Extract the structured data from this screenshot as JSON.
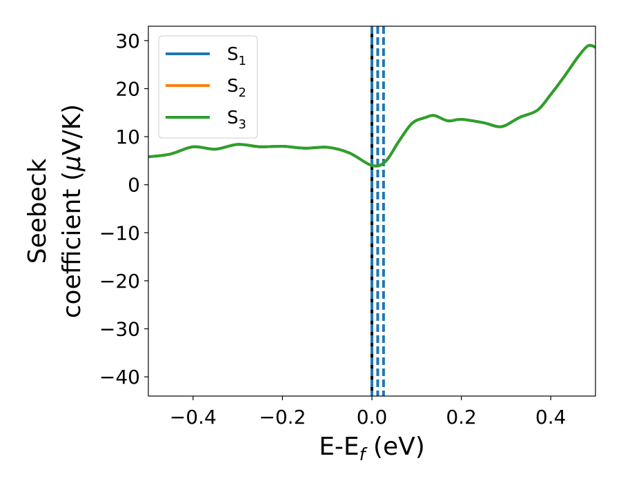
{
  "chart_data": {
    "type": "line",
    "xlabel": {
      "prefix": "E-E",
      "sub": "f",
      "suffix": " (eV)"
    },
    "ylabel": {
      "line1": "Seebeck",
      "line2_prefix": "coefficient  (",
      "mu": "μ",
      "line2_suffix": "V/K)"
    },
    "xlim": [
      -0.5,
      0.5
    ],
    "ylim": [
      -44,
      33
    ],
    "xticks": [
      -0.4,
      -0.2,
      0.0,
      0.2,
      0.4
    ],
    "xtick_labels": [
      "−0.4",
      "−0.2",
      "0.0",
      "0.2",
      "0.4"
    ],
    "yticks": [
      -40,
      -30,
      -20,
      -10,
      0,
      10,
      20,
      30
    ],
    "ytick_labels": [
      "−40",
      "−30",
      "−20",
      "−10",
      "0",
      "10",
      "20",
      "30"
    ],
    "legend_position": "top-left",
    "series": [
      {
        "name": "S1",
        "label_base": "S",
        "label_sub": "1",
        "color": "#1f77b4",
        "x": [
          -0.5,
          -0.45,
          -0.4,
          -0.35,
          -0.3,
          -0.25,
          -0.2,
          -0.15,
          -0.1,
          -0.05,
          0.0,
          0.03,
          0.06,
          0.09,
          0.12,
          0.14,
          0.17,
          0.2,
          0.25,
          0.29,
          0.33,
          0.37,
          0.4,
          0.43,
          0.46,
          0.48,
          0.49,
          0.5
        ],
        "y": [
          5.8,
          6.4,
          7.9,
          7.4,
          8.4,
          7.9,
          8.0,
          7.6,
          7.8,
          6.6,
          4.0,
          4.8,
          9.0,
          12.8,
          14.0,
          14.4,
          13.3,
          13.6,
          12.9,
          12.1,
          14.0,
          15.5,
          18.8,
          22.5,
          26.5,
          28.7,
          29.0,
          28.6
        ]
      },
      {
        "name": "S2",
        "label_base": "S",
        "label_sub": "2",
        "color": "#ff7f0e",
        "x": [
          -0.5,
          -0.45,
          -0.4,
          -0.35,
          -0.3,
          -0.25,
          -0.2,
          -0.15,
          -0.1,
          -0.05,
          0.0,
          0.03,
          0.06,
          0.09,
          0.12,
          0.14,
          0.17,
          0.2,
          0.25,
          0.29,
          0.33,
          0.37,
          0.4,
          0.43,
          0.46,
          0.48,
          0.49,
          0.5
        ],
        "y": [
          5.8,
          6.4,
          7.9,
          7.4,
          8.4,
          7.9,
          8.0,
          7.6,
          7.8,
          6.6,
          4.0,
          4.8,
          9.0,
          12.8,
          14.0,
          14.4,
          13.3,
          13.6,
          12.9,
          12.1,
          14.0,
          15.5,
          18.8,
          22.5,
          26.5,
          28.7,
          29.0,
          28.6
        ]
      },
      {
        "name": "S3",
        "label_base": "S",
        "label_sub": "3",
        "color": "#2ca02c",
        "x": [
          -0.5,
          -0.45,
          -0.4,
          -0.35,
          -0.3,
          -0.25,
          -0.2,
          -0.15,
          -0.1,
          -0.05,
          0.0,
          0.03,
          0.06,
          0.09,
          0.12,
          0.14,
          0.17,
          0.2,
          0.25,
          0.29,
          0.33,
          0.37,
          0.4,
          0.43,
          0.46,
          0.48,
          0.49,
          0.5
        ],
        "y": [
          5.8,
          6.4,
          7.9,
          7.4,
          8.4,
          7.9,
          8.0,
          7.6,
          7.8,
          6.6,
          4.0,
          4.8,
          9.0,
          12.8,
          14.0,
          14.4,
          13.3,
          13.6,
          12.9,
          12.1,
          14.0,
          15.5,
          18.8,
          22.5,
          26.5,
          28.7,
          29.0,
          28.6
        ]
      }
    ],
    "vlines": [
      {
        "x": 0.0,
        "color": "#000000",
        "style": "solid"
      },
      {
        "x": 0.0,
        "color": "#1f77b4",
        "style": "dashed"
      },
      {
        "x": 0.013,
        "color": "#1f77b4",
        "style": "dashed"
      },
      {
        "x": 0.026,
        "color": "#1f77b4",
        "style": "dashed"
      }
    ]
  }
}
